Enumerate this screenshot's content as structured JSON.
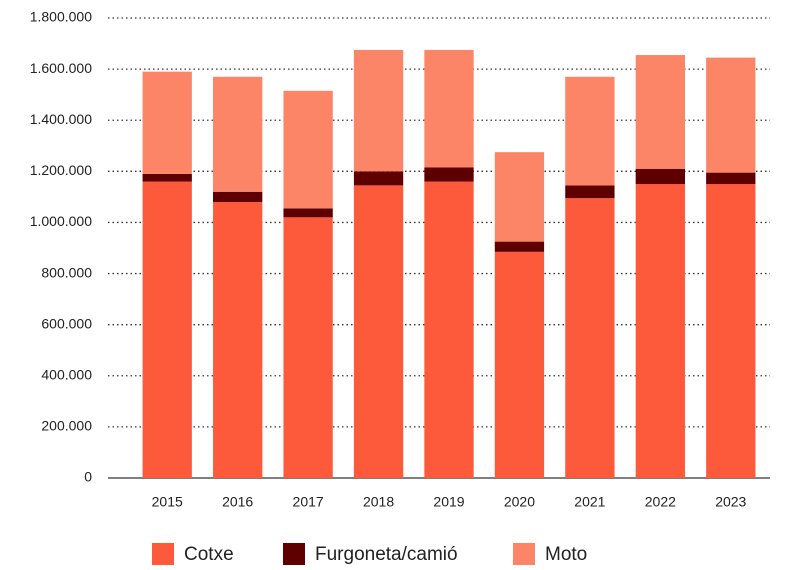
{
  "chart_data": {
    "type": "stacked_bar",
    "categories": [
      "2015",
      "2016",
      "2017",
      "2018",
      "2019",
      "2020",
      "2021",
      "2022",
      "2023"
    ],
    "series": [
      {
        "name": "Cotxe",
        "color": "#fd5a3c",
        "values": [
          1160000,
          1080000,
          1020000,
          1145000,
          1160000,
          885000,
          1095000,
          1150000,
          1150000
        ]
      },
      {
        "name": "Furgoneta/camió",
        "color": "#5e0000",
        "values": [
          30000,
          40000,
          35000,
          55000,
          55000,
          40000,
          50000,
          60000,
          45000
        ]
      },
      {
        "name": "Moto",
        "color": "#fb8566",
        "values": [
          400000,
          450000,
          460000,
          475000,
          460000,
          350000,
          425000,
          445000,
          450000
        ]
      }
    ],
    "ylim": [
      0,
      1800000
    ],
    "yticks": [
      0,
      {
        "value": 200000,
        "label": "200.000"
      },
      {
        "value": 400000,
        "label": "400.000"
      },
      {
        "value": 600000,
        "label": "600.000"
      },
      {
        "value": 800000,
        "label": "800.000"
      },
      {
        "value": 1000000,
        "label": "1.000.000"
      },
      {
        "value": 1200000,
        "label": "1.200.000"
      },
      {
        "value": 1400000,
        "label": "1.400.000"
      },
      {
        "value": 1600000,
        "label": "1.600.000"
      },
      {
        "value": 1800000,
        "label": "1.800.000"
      }
    ],
    "grid": true,
    "legend": "bottom"
  }
}
